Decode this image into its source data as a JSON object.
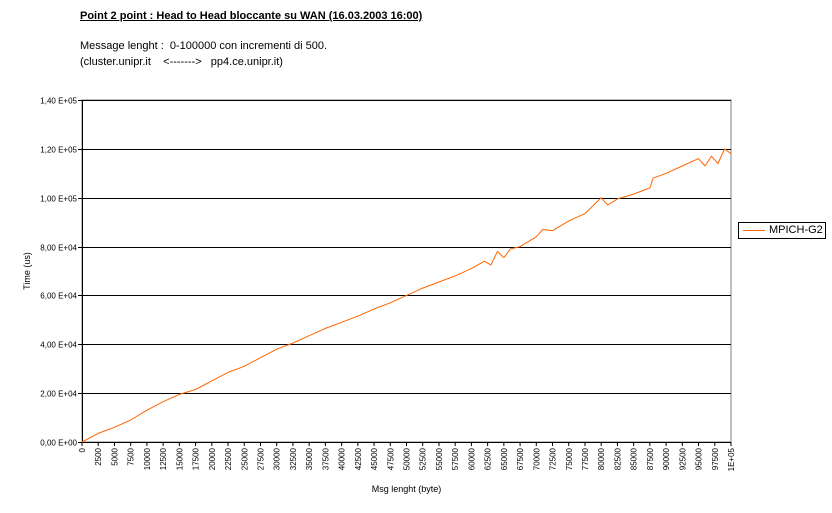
{
  "header": {
    "title": "Point 2 point : Head to Head bloccante su WAN (16.03.2003 16:00)",
    "subtitle_line1": "Message lenght :  0-100000 con incrementi di 500.",
    "subtitle_line2": "(cluster.unipr.it    <------->   pp4.ce.unipr.it)"
  },
  "chart_data": {
    "type": "line",
    "title": "Point 2 point : Head to Head bloccante su WAN (16.03.2003 16:00)",
    "xlabel": "Msg lenght (byte)",
    "ylabel": "Time (us)",
    "xlim": [
      0,
      100000
    ],
    "ylim": [
      0,
      140000
    ],
    "grid": "horizontal",
    "legend_position": "right",
    "line_color": "#ff6600",
    "y_ticks": [
      {
        "value": 0,
        "label": "0,00 E+00"
      },
      {
        "value": 20000,
        "label": "2,00 E+04"
      },
      {
        "value": 40000,
        "label": "4,00 E+04"
      },
      {
        "value": 60000,
        "label": "6,00 E+04"
      },
      {
        "value": 80000,
        "label": "8,00 E+04"
      },
      {
        "value": 100000,
        "label": "1,00 E+05"
      },
      {
        "value": 120000,
        "label": "1,20 E+05"
      },
      {
        "value": 140000,
        "label": "1,40 E+05"
      }
    ],
    "x_ticks": [
      "0",
      "2500",
      "5000",
      "7500",
      "10000",
      "12500",
      "15000",
      "17500",
      "20000",
      "22500",
      "25000",
      "27500",
      "30000",
      "32500",
      "35000",
      "37500",
      "40000",
      "42500",
      "45000",
      "47500",
      "50000",
      "52500",
      "55000",
      "57500",
      "60000",
      "62500",
      "65000",
      "67500",
      "70000",
      "72500",
      "75000",
      "77500",
      "80000",
      "82500",
      "85000",
      "87500",
      "90000",
      "92500",
      "95000",
      "97500",
      "1E+05"
    ],
    "x_tick_values": [
      0,
      2500,
      5000,
      7500,
      10000,
      12500,
      15000,
      17500,
      20000,
      22500,
      25000,
      27500,
      30000,
      32500,
      35000,
      37500,
      40000,
      42500,
      45000,
      47500,
      50000,
      52500,
      55000,
      57500,
      60000,
      62500,
      65000,
      67500,
      70000,
      72500,
      75000,
      77500,
      80000,
      82500,
      85000,
      87500,
      90000,
      92500,
      95000,
      97500,
      100000
    ],
    "series": [
      {
        "name": "MPICH-G2",
        "x": [
          0,
          2500,
          5000,
          7500,
          10000,
          12500,
          15000,
          17500,
          20000,
          22500,
          25000,
          27500,
          30000,
          32500,
          35000,
          37500,
          40000,
          42500,
          45000,
          47500,
          50000,
          52500,
          55000,
          57500,
          60000,
          62000,
          63000,
          64000,
          65000,
          66000,
          67500,
          70000,
          71000,
          72500,
          75000,
          77500,
          80000,
          81000,
          82500,
          85000,
          87500,
          88000,
          90000,
          92500,
          95000,
          96000,
          97000,
          98000,
          99000,
          100000
        ],
        "y": [
          0,
          3500,
          6000,
          9000,
          13000,
          16500,
          19500,
          21500,
          25000,
          28500,
          31000,
          34500,
          38000,
          40500,
          43500,
          46500,
          49000,
          51500,
          54500,
          57000,
          60000,
          63000,
          65500,
          68000,
          71000,
          74000,
          72500,
          78000,
          75500,
          79000,
          80000,
          84000,
          87000,
          86500,
          90500,
          93500,
          100000,
          97000,
          99500,
          101500,
          104000,
          108000,
          110000,
          113000,
          116000,
          113000,
          117000,
          114000,
          120000,
          118000
        ]
      }
    ]
  }
}
